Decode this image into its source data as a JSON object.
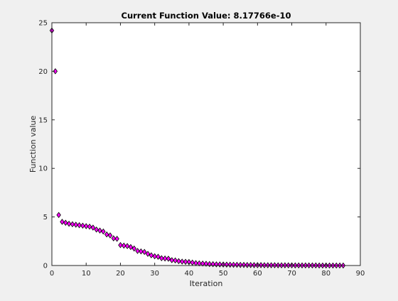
{
  "figure": {
    "background": "#f0f0f0"
  },
  "chart_data": {
    "type": "scatter",
    "title": "Current Function Value: 8.17766e-10",
    "xlabel": "Iteration",
    "ylabel": "Function value",
    "xlim": [
      0,
      90
    ],
    "ylim": [
      0,
      25
    ],
    "xticks": [
      "0",
      "10",
      "20",
      "30",
      "40",
      "50",
      "60",
      "70",
      "80",
      "90"
    ],
    "yticks": [
      "0",
      "5",
      "10",
      "15",
      "20",
      "25"
    ],
    "grid": false,
    "marker": "diamond",
    "marker_color": "#ff00ff",
    "marker_edge": "#000000",
    "series": [
      {
        "x": [
          0,
          1,
          2,
          3,
          4,
          5,
          6,
          7,
          8,
          9,
          10,
          11,
          12,
          13,
          14,
          15,
          16,
          17,
          18,
          19,
          20,
          21,
          22,
          23,
          24,
          25,
          26,
          27,
          28,
          29,
          30,
          31,
          32,
          33,
          34,
          35,
          36,
          37,
          38,
          39,
          40,
          41,
          42,
          43,
          44,
          45,
          46,
          47,
          48,
          49,
          50,
          51,
          52,
          53,
          54,
          55,
          56,
          57,
          58,
          59,
          60,
          61,
          62,
          63,
          64,
          65,
          66,
          67,
          68,
          69,
          70,
          71,
          72,
          73,
          74,
          75,
          76,
          77,
          78,
          79,
          80,
          81,
          82,
          83,
          84,
          85
        ],
        "y": [
          24.2,
          20.0,
          5.2,
          4.5,
          4.4,
          4.3,
          4.25,
          4.2,
          4.15,
          4.1,
          4.05,
          4.0,
          3.9,
          3.7,
          3.6,
          3.5,
          3.2,
          3.1,
          2.8,
          2.75,
          2.1,
          2.05,
          2.0,
          1.9,
          1.75,
          1.5,
          1.45,
          1.4,
          1.2,
          1.05,
          0.95,
          0.9,
          0.75,
          0.72,
          0.7,
          0.55,
          0.52,
          0.45,
          0.4,
          0.38,
          0.36,
          0.3,
          0.25,
          0.22,
          0.2,
          0.18,
          0.15,
          0.14,
          0.12,
          0.11,
          0.1,
          0.09,
          0.08,
          0.07,
          0.07,
          0.06,
          0.06,
          0.05,
          0.05,
          0.04,
          0.04,
          0.04,
          0.03,
          0.03,
          0.03,
          0.03,
          0.02,
          0.02,
          0.02,
          0.02,
          0.02,
          0.01,
          0.01,
          0.01,
          0.01,
          0.01,
          0.01,
          0.01,
          0.0,
          0.0,
          0.0,
          0.0,
          0.0,
          0.0,
          0.0,
          0.0
        ]
      }
    ]
  }
}
